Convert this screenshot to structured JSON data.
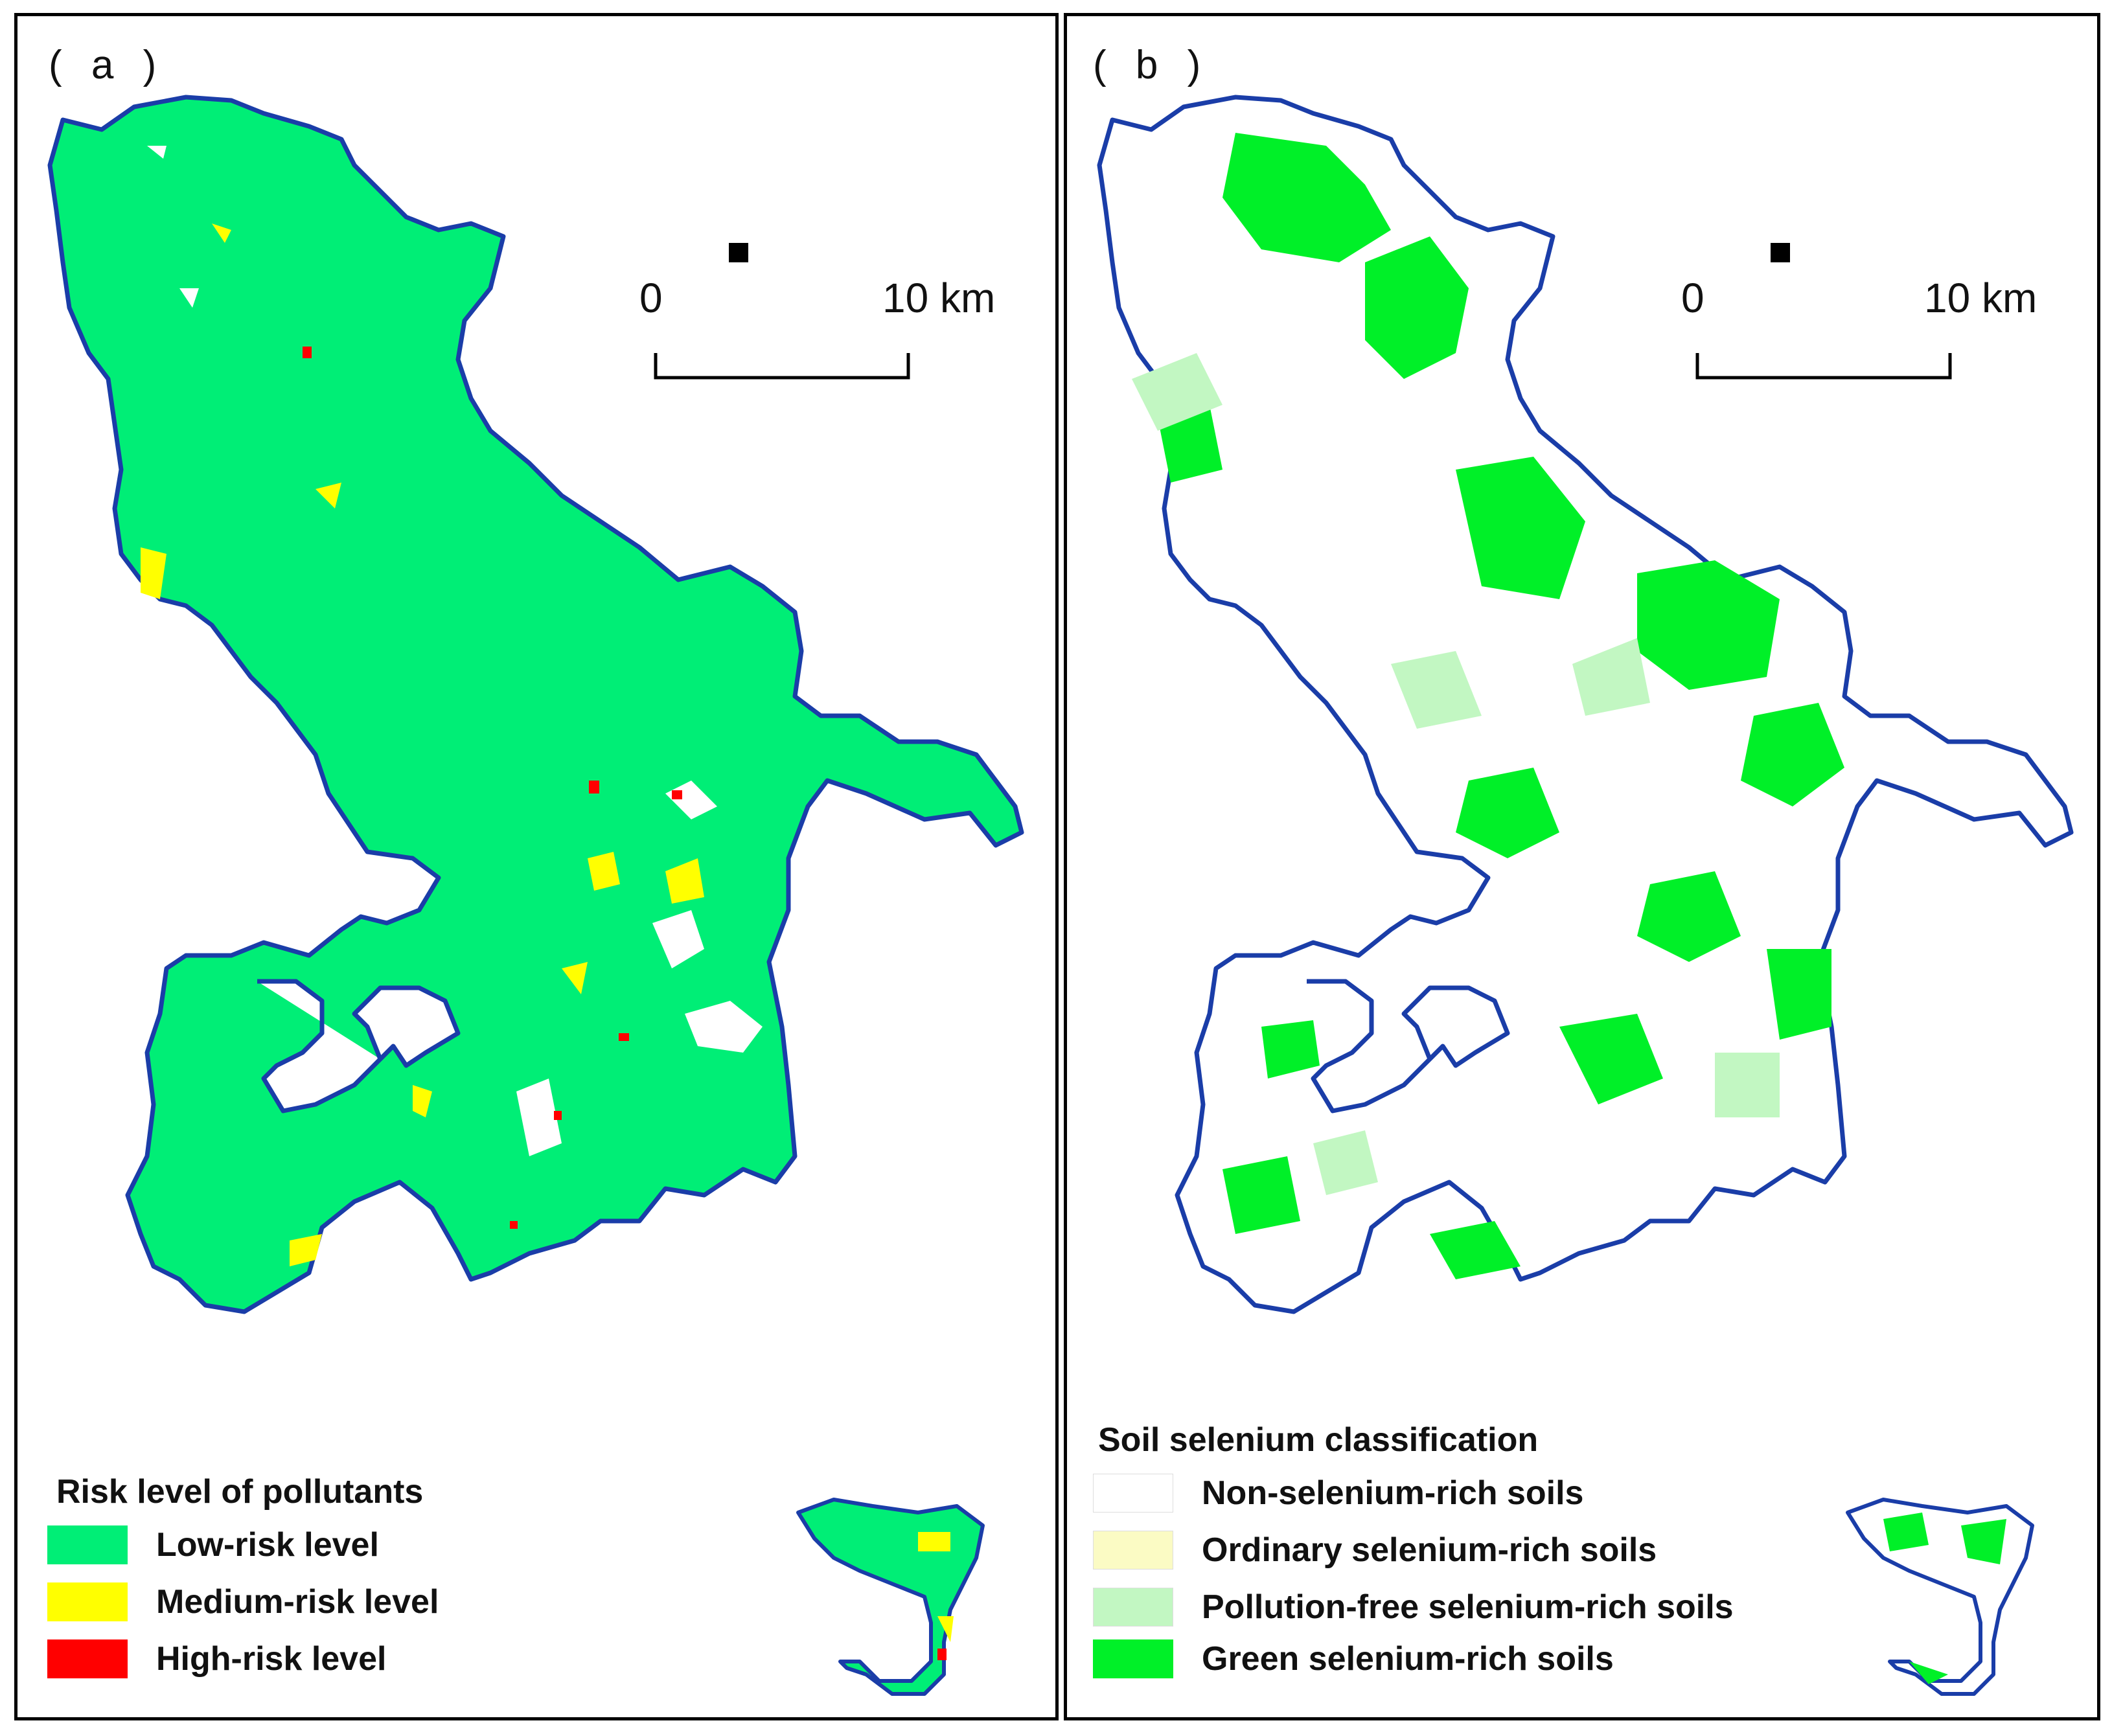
{
  "panels": [
    {
      "label": "( a )",
      "scale": {
        "start": "0",
        "end": "10 km"
      },
      "legend": {
        "title": "Risk level of pollutants",
        "items": [
          {
            "label": "Low-risk level",
            "color": "#00ee76"
          },
          {
            "label": "Medium-risk level",
            "color": "#ffff00"
          },
          {
            "label": "High-risk level",
            "color": "#ff0000"
          }
        ]
      }
    },
    {
      "label": "( b )",
      "scale": {
        "start": "0",
        "end": "10 km"
      },
      "legend": {
        "title": "Soil selenium classification",
        "items": [
          {
            "label": "Non-selenium-rich soils",
            "color": "#ffffff"
          },
          {
            "label": "Ordinary selenium-rich soils",
            "color": "#fbfbc4"
          },
          {
            "label": "Pollution-free selenium-rich soils",
            "color": "#c2f7c2"
          },
          {
            "label": "Green selenium-rich soils",
            "color": "#00f028"
          }
        ]
      }
    }
  ],
  "colors": {
    "boundary": "#1a3da8",
    "map_fill_a": "#00ee76",
    "map_fill_b": "#00f028"
  }
}
